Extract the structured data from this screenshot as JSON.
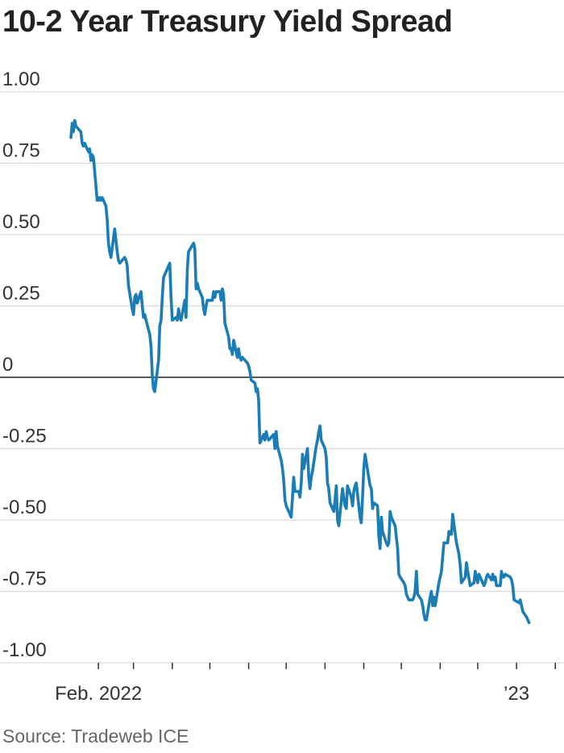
{
  "chart_data": {
    "type": "line",
    "title": "10-2 Year Treasury Yield Spread",
    "source": "Source: Tradeweb ICE",
    "ylim": [
      -1.0,
      1.0
    ],
    "yticks": [
      {
        "value": 1.0,
        "label": "1.00"
      },
      {
        "value": 0.75,
        "label": "0.75"
      },
      {
        "value": 0.5,
        "label": "0.50"
      },
      {
        "value": 0.25,
        "label": "0.25"
      },
      {
        "value": 0,
        "label": "0"
      },
      {
        "value": -0.25,
        "label": "-0.25"
      },
      {
        "value": -0.5,
        "label": "-0.50"
      },
      {
        "value": -0.75,
        "label": "-0.75"
      },
      {
        "value": -1.0,
        "label": "-1.00"
      }
    ],
    "xlim": [
      "2022-01-10",
      "2023-02-06"
    ],
    "xtick_labels": [
      {
        "date": "2022-02-01",
        "label": "Feb. 2022"
      },
      {
        "date": "2023-01-01",
        "label": "’23"
      }
    ],
    "month_ticks": [
      "2022-02-01",
      "2022-03-01",
      "2022-04-01",
      "2022-05-01",
      "2022-06-01",
      "2022-07-01",
      "2022-08-01",
      "2022-09-01",
      "2022-10-01",
      "2022-11-01",
      "2022-12-01",
      "2023-01-01",
      "2023-02-01"
    ],
    "grid": true,
    "series": [
      {
        "color": "#1a7db6",
        "points": [
          [
            "2022-01-10",
            0.84
          ],
          [
            "2022-01-11",
            0.89
          ],
          [
            "2022-01-12",
            0.86
          ],
          [
            "2022-01-13",
            0.9
          ],
          [
            "2022-01-14",
            0.88
          ],
          [
            "2022-01-18",
            0.86
          ],
          [
            "2022-01-19",
            0.82
          ],
          [
            "2022-01-20",
            0.81
          ],
          [
            "2022-01-21",
            0.82
          ],
          [
            "2022-01-24",
            0.79
          ],
          [
            "2022-01-25",
            0.8
          ],
          [
            "2022-01-26",
            0.76
          ],
          [
            "2022-01-27",
            0.78
          ],
          [
            "2022-01-28",
            0.77
          ],
          [
            "2022-01-31",
            0.62
          ],
          [
            "2022-02-01",
            0.62
          ],
          [
            "2022-02-02",
            0.63
          ],
          [
            "2022-02-03",
            0.62
          ],
          [
            "2022-02-04",
            0.63
          ],
          [
            "2022-02-07",
            0.6
          ],
          [
            "2022-02-08",
            0.55
          ],
          [
            "2022-02-09",
            0.47
          ],
          [
            "2022-02-10",
            0.44
          ],
          [
            "2022-02-11",
            0.42
          ],
          [
            "2022-02-14",
            0.52
          ],
          [
            "2022-02-15",
            0.48
          ],
          [
            "2022-02-16",
            0.44
          ],
          [
            "2022-02-17",
            0.41
          ],
          [
            "2022-02-18",
            0.4
          ],
          [
            "2022-02-22",
            0.42
          ],
          [
            "2022-02-23",
            0.41
          ],
          [
            "2022-02-24",
            0.39
          ],
          [
            "2022-02-25",
            0.32
          ],
          [
            "2022-02-28",
            0.24
          ],
          [
            "2022-03-01",
            0.22
          ],
          [
            "2022-03-02",
            0.28
          ],
          [
            "2022-03-03",
            0.29
          ],
          [
            "2022-03-04",
            0.26
          ],
          [
            "2022-03-07",
            0.3
          ],
          [
            "2022-03-08",
            0.25
          ],
          [
            "2022-03-09",
            0.21
          ],
          [
            "2022-03-10",
            0.22
          ],
          [
            "2022-03-11",
            0.2
          ],
          [
            "2022-03-14",
            0.15
          ],
          [
            "2022-03-15",
            0.11
          ],
          [
            "2022-03-16",
            0.01
          ],
          [
            "2022-03-17",
            -0.04
          ],
          [
            "2022-03-18",
            -0.05
          ],
          [
            "2022-03-21",
            0.06
          ],
          [
            "2022-03-22",
            0.18
          ],
          [
            "2022-03-23",
            0.2
          ],
          [
            "2022-03-24",
            0.28
          ],
          [
            "2022-03-25",
            0.35
          ],
          [
            "2022-03-28",
            0.38
          ],
          [
            "2022-03-29",
            0.39
          ],
          [
            "2022-03-30",
            0.4
          ],
          [
            "2022-03-31",
            0.28
          ],
          [
            "2022-04-01",
            0.2
          ],
          [
            "2022-04-04",
            0.21
          ],
          [
            "2022-04-05",
            0.2
          ],
          [
            "2022-04-06",
            0.24
          ],
          [
            "2022-04-07",
            0.21
          ],
          [
            "2022-04-08",
            0.2
          ],
          [
            "2022-04-11",
            0.27
          ],
          [
            "2022-04-12",
            0.21
          ],
          [
            "2022-04-13",
            0.38
          ],
          [
            "2022-04-14",
            0.44
          ],
          [
            "2022-04-18",
            0.47
          ],
          [
            "2022-04-19",
            0.45
          ],
          [
            "2022-04-20",
            0.31
          ],
          [
            "2022-04-21",
            0.33
          ],
          [
            "2022-04-22",
            0.31
          ],
          [
            "2022-04-25",
            0.28
          ],
          [
            "2022-04-26",
            0.24
          ],
          [
            "2022-04-27",
            0.22
          ],
          [
            "2022-04-28",
            0.25
          ],
          [
            "2022-04-29",
            0.27
          ],
          [
            "2022-05-02",
            0.27
          ],
          [
            "2022-05-03",
            0.27
          ],
          [
            "2022-05-04",
            0.3
          ],
          [
            "2022-05-05",
            0.28
          ],
          [
            "2022-05-06",
            0.3
          ],
          [
            "2022-05-09",
            0.3
          ],
          [
            "2022-05-10",
            0.27
          ],
          [
            "2022-05-11",
            0.31
          ],
          [
            "2022-05-12",
            0.29
          ],
          [
            "2022-05-13",
            0.19
          ],
          [
            "2022-05-16",
            0.14
          ],
          [
            "2022-05-17",
            0.1
          ],
          [
            "2022-05-18",
            0.1
          ],
          [
            "2022-05-19",
            0.08
          ],
          [
            "2022-05-20",
            0.13
          ],
          [
            "2022-05-23",
            0.07
          ],
          [
            "2022-05-24",
            0.1
          ],
          [
            "2022-05-25",
            0.07
          ],
          [
            "2022-05-26",
            0.06
          ],
          [
            "2022-05-27",
            0.07
          ],
          [
            "2022-05-31",
            0.05
          ],
          [
            "2022-06-01",
            0.04
          ],
          [
            "2022-06-02",
            0.02
          ],
          [
            "2022-06-03",
            -0.01
          ],
          [
            "2022-06-06",
            -0.02
          ],
          [
            "2022-06-07",
            -0.05
          ],
          [
            "2022-06-08",
            -0.04
          ],
          [
            "2022-06-09",
            -0.08
          ],
          [
            "2022-06-10",
            -0.23
          ],
          [
            "2022-06-13",
            -0.2
          ],
          [
            "2022-06-14",
            -0.22
          ],
          [
            "2022-06-15",
            -0.19
          ],
          [
            "2022-06-16",
            -0.21
          ],
          [
            "2022-06-17",
            -0.22
          ],
          [
            "2022-06-21",
            -0.2
          ],
          [
            "2022-06-22",
            -0.25
          ],
          [
            "2022-06-23",
            -0.19
          ],
          [
            "2022-06-24",
            -0.24
          ],
          [
            "2022-06-27",
            -0.29
          ],
          [
            "2022-06-28",
            -0.32
          ],
          [
            "2022-06-29",
            -0.36
          ],
          [
            "2022-06-30",
            -0.43
          ],
          [
            "2022-07-01",
            -0.45
          ],
          [
            "2022-07-05",
            -0.49
          ],
          [
            "2022-07-06",
            -0.42
          ],
          [
            "2022-07-07",
            -0.35
          ],
          [
            "2022-07-08",
            -0.4
          ],
          [
            "2022-07-11",
            -0.4
          ],
          [
            "2022-07-12",
            -0.42
          ],
          [
            "2022-07-13",
            -0.37
          ],
          [
            "2022-07-14",
            -0.27
          ],
          [
            "2022-07-15",
            -0.32
          ],
          [
            "2022-07-18",
            -0.25
          ],
          [
            "2022-07-19",
            -0.35
          ],
          [
            "2022-07-20",
            -0.39
          ],
          [
            "2022-07-21",
            -0.35
          ],
          [
            "2022-07-22",
            -0.33
          ],
          [
            "2022-07-25",
            -0.24
          ],
          [
            "2022-07-26",
            -0.22
          ],
          [
            "2022-07-27",
            -0.19
          ],
          [
            "2022-07-28",
            -0.17
          ],
          [
            "2022-07-29",
            -0.22
          ],
          [
            "2022-08-01",
            -0.25
          ],
          [
            "2022-08-02",
            -0.28
          ],
          [
            "2022-08-03",
            -0.37
          ],
          [
            "2022-08-04",
            -0.39
          ],
          [
            "2022-08-05",
            -0.44
          ],
          [
            "2022-08-08",
            -0.47
          ],
          [
            "2022-08-09",
            -0.43
          ],
          [
            "2022-08-10",
            -0.38
          ],
          [
            "2022-08-11",
            -0.5
          ],
          [
            "2022-08-12",
            -0.52
          ],
          [
            "2022-08-15",
            -0.39
          ],
          [
            "2022-08-16",
            -0.42
          ],
          [
            "2022-08-17",
            -0.45
          ],
          [
            "2022-08-18",
            -0.46
          ],
          [
            "2022-08-19",
            -0.38
          ],
          [
            "2022-08-22",
            -0.42
          ],
          [
            "2022-08-23",
            -0.45
          ],
          [
            "2022-08-24",
            -0.4
          ],
          [
            "2022-08-25",
            -0.38
          ],
          [
            "2022-08-26",
            -0.37
          ],
          [
            "2022-08-29",
            -0.49
          ],
          [
            "2022-08-30",
            -0.51
          ],
          [
            "2022-08-31",
            -0.42
          ],
          [
            "2022-09-01",
            -0.32
          ],
          [
            "2022-09-02",
            -0.27
          ],
          [
            "2022-09-06",
            -0.38
          ],
          [
            "2022-09-07",
            -0.39
          ],
          [
            "2022-09-08",
            -0.46
          ],
          [
            "2022-09-09",
            -0.44
          ],
          [
            "2022-09-12",
            -0.45
          ],
          [
            "2022-09-13",
            -0.56
          ],
          [
            "2022-09-14",
            -0.6
          ],
          [
            "2022-09-15",
            -0.49
          ],
          [
            "2022-09-16",
            -0.54
          ],
          [
            "2022-09-19",
            -0.58
          ],
          [
            "2022-09-20",
            -0.59
          ],
          [
            "2022-09-21",
            -0.58
          ],
          [
            "2022-09-22",
            -0.47
          ],
          [
            "2022-09-23",
            -0.49
          ],
          [
            "2022-09-26",
            -0.52
          ],
          [
            "2022-09-27",
            -0.56
          ],
          [
            "2022-09-28",
            -0.6
          ],
          [
            "2022-09-29",
            -0.69
          ],
          [
            "2022-09-30",
            -0.7
          ],
          [
            "2022-10-03",
            -0.72
          ],
          [
            "2022-10-04",
            -0.73
          ],
          [
            "2022-10-05",
            -0.76
          ],
          [
            "2022-10-06",
            -0.77
          ],
          [
            "2022-10-07",
            -0.78
          ],
          [
            "2022-10-10",
            -0.78
          ],
          [
            "2022-10-11",
            -0.77
          ],
          [
            "2022-10-12",
            -0.75
          ],
          [
            "2022-10-13",
            -0.68
          ],
          [
            "2022-10-14",
            -0.76
          ],
          [
            "2022-10-17",
            -0.78
          ],
          [
            "2022-10-18",
            -0.8
          ],
          [
            "2022-10-19",
            -0.83
          ],
          [
            "2022-10-20",
            -0.85
          ],
          [
            "2022-10-21",
            -0.85
          ],
          [
            "2022-10-24",
            -0.77
          ],
          [
            "2022-10-25",
            -0.75
          ],
          [
            "2022-10-26",
            -0.8
          ],
          [
            "2022-10-27",
            -0.77
          ],
          [
            "2022-10-28",
            -0.8
          ],
          [
            "2022-10-31",
            -0.72
          ],
          [
            "2022-11-01",
            -0.7
          ],
          [
            "2022-11-02",
            -0.68
          ],
          [
            "2022-11-03",
            -0.63
          ],
          [
            "2022-11-04",
            -0.58
          ],
          [
            "2022-11-07",
            -0.58
          ],
          [
            "2022-11-08",
            -0.54
          ],
          [
            "2022-11-09",
            -0.55
          ],
          [
            "2022-11-10",
            -0.55
          ],
          [
            "2022-11-11",
            -0.48
          ],
          [
            "2022-11-14",
            -0.58
          ],
          [
            "2022-11-15",
            -0.6
          ],
          [
            "2022-11-16",
            -0.62
          ],
          [
            "2022-11-17",
            -0.66
          ],
          [
            "2022-11-18",
            -0.72
          ],
          [
            "2022-11-21",
            -0.7
          ],
          [
            "2022-11-22",
            -0.65
          ],
          [
            "2022-11-23",
            -0.68
          ],
          [
            "2022-11-25",
            -0.73
          ],
          [
            "2022-11-28",
            -0.72
          ],
          [
            "2022-11-29",
            -0.68
          ],
          [
            "2022-11-30",
            -0.7
          ],
          [
            "2022-12-01",
            -0.72
          ],
          [
            "2022-12-02",
            -0.69
          ],
          [
            "2022-12-05",
            -0.72
          ],
          [
            "2022-12-06",
            -0.73
          ],
          [
            "2022-12-07",
            -0.72
          ],
          [
            "2022-12-08",
            -0.7
          ],
          [
            "2022-12-09",
            -0.69
          ],
          [
            "2022-12-12",
            -0.71
          ],
          [
            "2022-12-13",
            -0.69
          ],
          [
            "2022-12-14",
            -0.71
          ],
          [
            "2022-12-15",
            -0.7
          ],
          [
            "2022-12-16",
            -0.73
          ],
          [
            "2022-12-19",
            -0.73
          ],
          [
            "2022-12-20",
            -0.68
          ],
          [
            "2022-12-21",
            -0.7
          ],
          [
            "2022-12-22",
            -0.7
          ],
          [
            "2022-12-23",
            -0.69
          ],
          [
            "2022-12-27",
            -0.7
          ],
          [
            "2022-12-28",
            -0.71
          ],
          [
            "2022-12-29",
            -0.73
          ],
          [
            "2022-12-30",
            -0.78
          ],
          [
            "2023-01-03",
            -0.79
          ],
          [
            "2023-01-04",
            -0.78
          ],
          [
            "2023-01-05",
            -0.8
          ],
          [
            "2023-01-06",
            -0.82
          ],
          [
            "2023-01-09",
            -0.84
          ],
          [
            "2023-01-10",
            -0.85
          ],
          [
            "2023-01-11",
            -0.86
          ]
        ]
      }
    ],
    "xlabel": "",
    "ylabel": ""
  }
}
